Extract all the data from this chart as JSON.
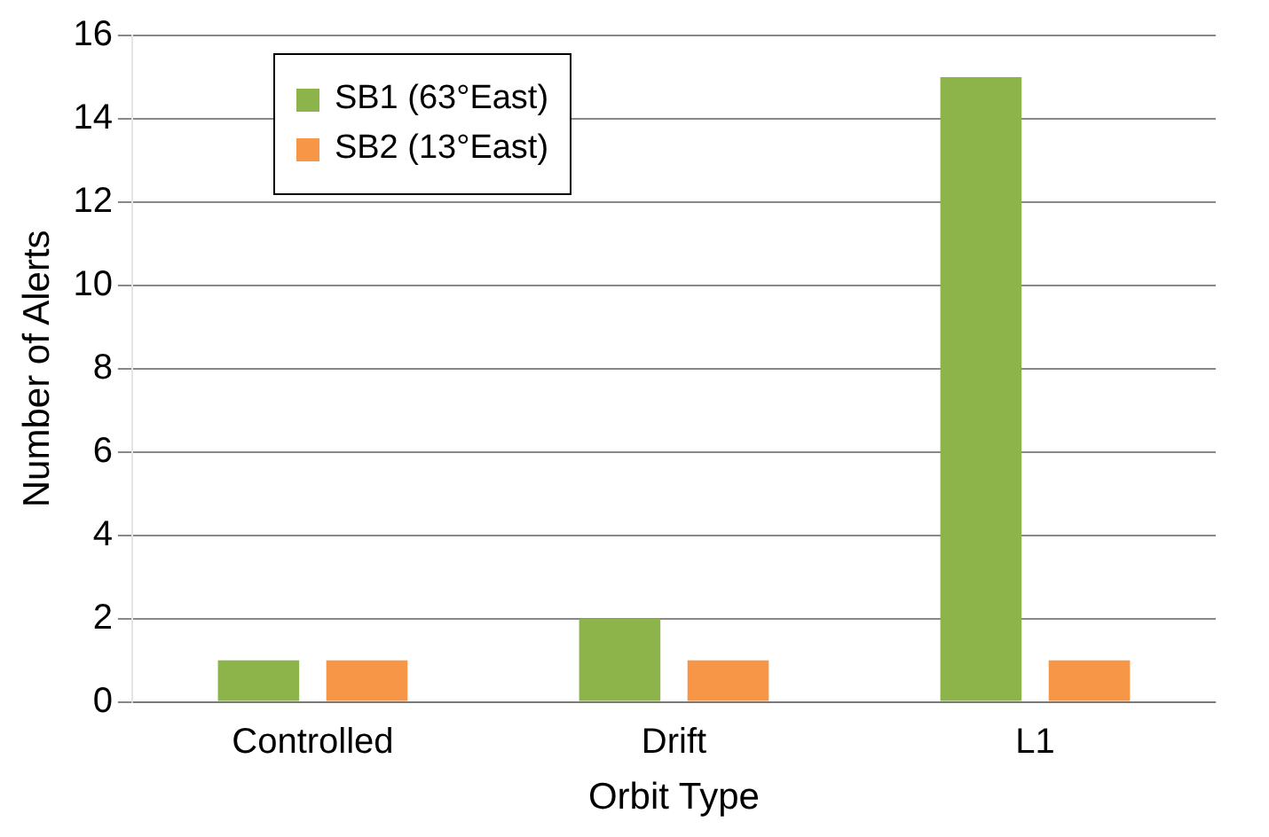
{
  "chart_data": {
    "type": "bar",
    "xlabel": "Orbit Type",
    "ylabel": "Number of Alerts",
    "categories": [
      "Controlled",
      "Drift",
      "L1"
    ],
    "series": [
      {
        "name": "SB1 (63°East)",
        "color": "#8db44a",
        "values": [
          1,
          2,
          15
        ]
      },
      {
        "name": "SB2 (13°East)",
        "color": "#f79646",
        "values": [
          1,
          1,
          1
        ]
      }
    ],
    "ylim": [
      0,
      16
    ],
    "yticks": [
      0,
      2,
      4,
      6,
      8,
      10,
      12,
      14,
      16
    ],
    "grid": "y",
    "legend": "top left"
  }
}
